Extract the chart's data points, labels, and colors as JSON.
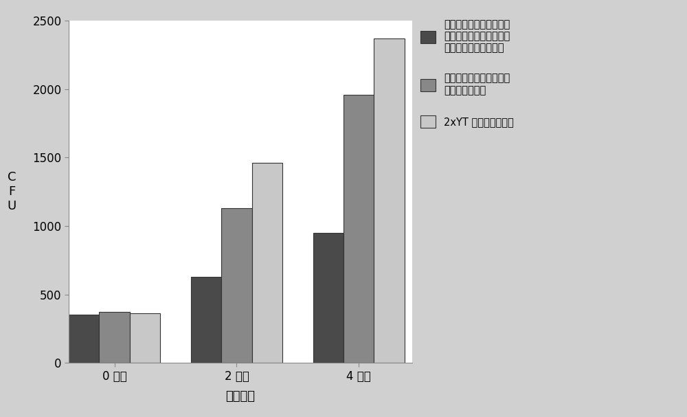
{
  "categories": [
    "0 小时",
    "2 小时",
    "4 小时"
  ],
  "series": [
    {
      "name": "来自诱导的在质粒中具有\n骆驼科抗体片段插入物的\n分泌载体的试验上清液",
      "values": [
        350,
        630,
        950
      ],
      "color": "#4a4a4a",
      "hatch": ""
    },
    {
      "name": "来自诱导的分泌空载体的\n试验对照上清液",
      "values": [
        370,
        1130,
        1960
      ],
      "color": "#888888",
      "hatch": ""
    },
    {
      "name": "2xYT 生长培养基对照",
      "values": [
        360,
        1460,
        2370
      ],
      "color": "#c8c8c8",
      "hatch": ""
    }
  ],
  "ylabel": "C\nF\nU",
  "xlabel": "取样间隔",
  "ylim": [
    0,
    2500
  ],
  "yticks": [
    0,
    500,
    1000,
    1500,
    2000,
    2500
  ],
  "background_color": "#d0d0d0",
  "plot_bg_color": "#ffffff",
  "bar_width": 0.2,
  "group_positions": [
    0.3,
    1.1,
    1.9
  ],
  "legend_fontsize": 10.5,
  "axis_fontsize": 13,
  "tick_fontsize": 12
}
